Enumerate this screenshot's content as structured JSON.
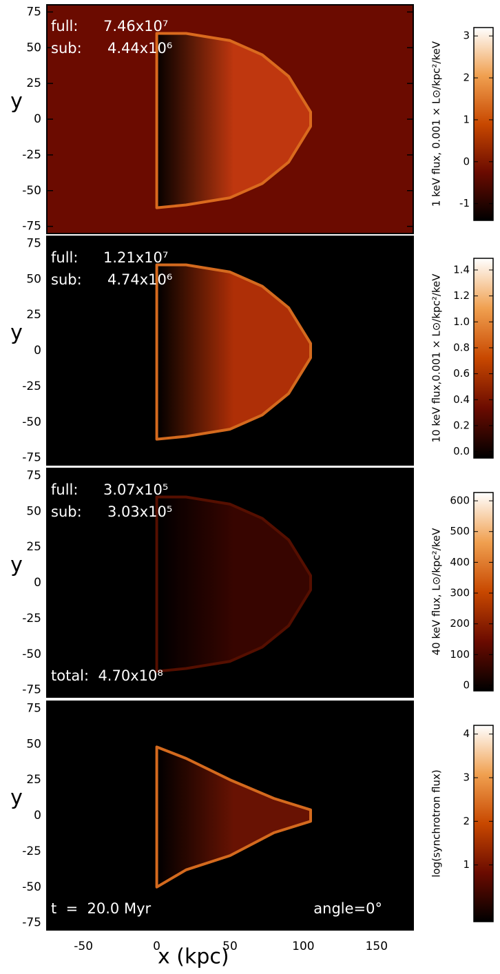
{
  "chart_data": [
    {
      "type": "image",
      "background": "#6b0b00",
      "shade": "#c43a10",
      "notes": [
        [
          "full:",
          "7.46x10⁷"
        ],
        [
          "sub:",
          "4.44x10⁶"
        ]
      ],
      "bottom_notes": [],
      "ylabel": "y",
      "xlim": [
        -75,
        175
      ],
      "ylim": [
        -80,
        80
      ],
      "yticks": [
        75,
        50,
        25,
        0,
        -25,
        -50,
        -75
      ],
      "colorbar": {
        "label": "1 keV flux, 0.001 × L⊙/kpc²/keV",
        "ylim": [
          -1.4,
          3.2
        ],
        "ticks": [
          3,
          2,
          1,
          0,
          -1
        ],
        "colormap": [
          "#000000",
          "#6b0b00",
          "#c84800",
          "#f0a050",
          "#ffffff"
        ]
      }
    },
    {
      "type": "image",
      "background": "#000000",
      "shade": "#b83208",
      "notes": [
        [
          "full:",
          "1.21x10⁷"
        ],
        [
          "sub:",
          "4.74x10⁶"
        ]
      ],
      "bottom_notes": [],
      "ylabel": "y",
      "xlim": [
        -75,
        175
      ],
      "ylim": [
        -80,
        80
      ],
      "yticks": [
        75,
        50,
        25,
        0,
        -25,
        -50,
        -75
      ],
      "colorbar": {
        "label": "10 keV flux,0.001 × L⊙/kpc²/keV",
        "ylim": [
          -0.05,
          1.49
        ],
        "ticks": [
          {
            "value": 1.4,
            "label": "1.4"
          },
          {
            "value": 1.2,
            "label": "1.2"
          },
          {
            "value": 1,
            "label": "1.0"
          },
          {
            "value": 0.8,
            "label": "0.8"
          },
          {
            "value": 0.6,
            "label": "0.6"
          },
          {
            "value": 0.4,
            "label": "0.4"
          },
          {
            "value": 0.2,
            "label": "0.2"
          },
          {
            "value": 0,
            "label": "0.0"
          }
        ],
        "colormap": [
          "#000000",
          "#6b0b00",
          "#c84800",
          "#f0a050",
          "#ffffff"
        ]
      }
    },
    {
      "type": "image",
      "background": "#000000",
      "shade": "#3a0600",
      "notes": [
        [
          "full:",
          "3.07x10⁵"
        ],
        [
          "sub:",
          "3.03x10⁵"
        ]
      ],
      "bottom_notes": [
        "total:  4.70x10⁸"
      ],
      "ylabel": "y",
      "xlim": [
        -75,
        175
      ],
      "ylim": [
        -80,
        80
      ],
      "yticks": [
        75,
        50,
        25,
        0,
        -25,
        -50,
        -75
      ],
      "colorbar": {
        "label": "40 keV flux, L⊙/kpc²/keV",
        "ylim": [
          -18,
          627
        ],
        "ticks": [
          600,
          500,
          400,
          300,
          200,
          100,
          0
        ],
        "colormap": [
          "#000000",
          "#6b0b00",
          "#c84800",
          "#f0a050",
          "#ffffff"
        ]
      }
    },
    {
      "type": "image",
      "background": "#000000",
      "shade": "#6e1404",
      "notes": [],
      "bottom_notes": [
        "t  =  20.0 Myr",
        "angle=0°"
      ],
      "ylabel": "y",
      "xlabel": "x (kpc)",
      "xlim": [
        -75,
        175
      ],
      "xticks": [
        -50,
        0,
        50,
        100,
        150
      ],
      "ylim": [
        -80,
        80
      ],
      "yticks": [
        75,
        50,
        25,
        0,
        -25,
        -50,
        -75
      ],
      "colorbar": {
        "label": "log(synchrotron flux)",
        "ylim": [
          -0.3,
          4.2
        ],
        "ticks": [
          4,
          3,
          2,
          1
        ],
        "colormap": [
          "#000000",
          "#6b0b00",
          "#c84800",
          "#f0a050",
          "#ffffff"
        ]
      }
    }
  ]
}
